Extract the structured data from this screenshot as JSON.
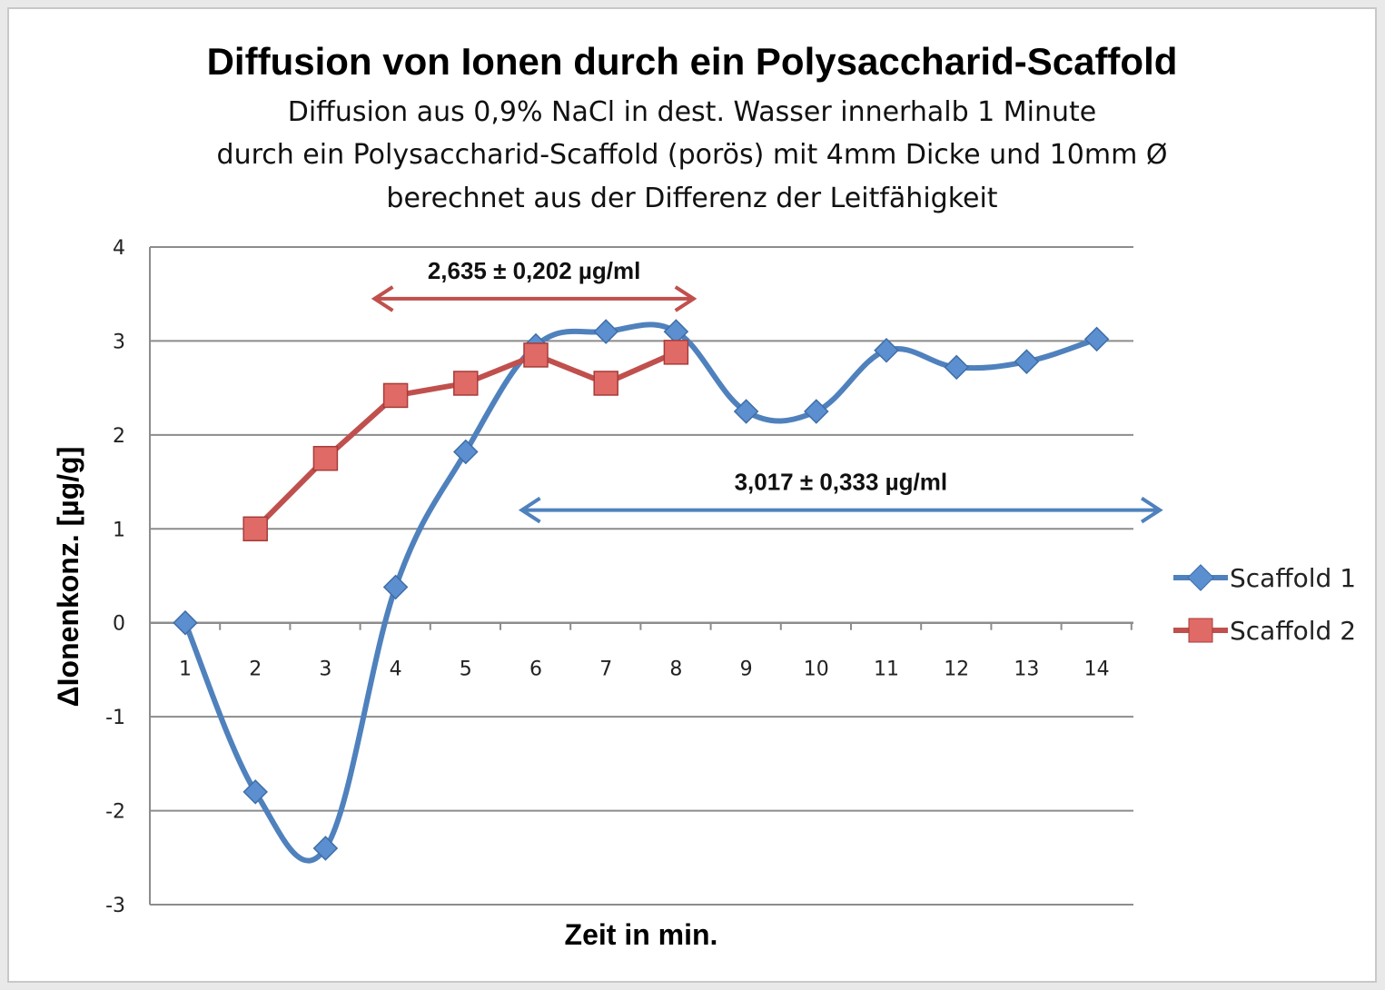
{
  "chart_data": {
    "type": "line",
    "title": "Diffusion von Ionen durch ein Polysaccharid-Scaffold",
    "subtitle": [
      "Diffusion aus 0,9% NaCl in dest. Wasser innerhalb 1 Minute",
      "durch ein Polysaccharid-Scaffold (porös) mit 4mm Dicke und 10mm Ø",
      "berechnet aus der Differenz der Leitfähigkeit"
    ],
    "xlabel": "Zeit in min.",
    "ylabel": "ΔIonenkonz. [µg/g]",
    "categories": [
      "1",
      "2",
      "3",
      "4",
      "5",
      "6",
      "7",
      "8",
      "9",
      "10",
      "11",
      "12",
      "13",
      "14"
    ],
    "ylim": [
      -3,
      4
    ],
    "yticks": [
      "4",
      "3",
      "2",
      "1",
      "0",
      "-1",
      "-2",
      "-3"
    ],
    "grid": true,
    "legend_position": "right",
    "series": [
      {
        "name": "Scaffold 1",
        "color": "#4f81bd",
        "marker": "diamond",
        "values": [
          0,
          -1.8,
          -2.4,
          0.38,
          1.82,
          2.95,
          3.1,
          3.1,
          2.25,
          2.25,
          2.9,
          2.72,
          2.78,
          3.02
        ]
      },
      {
        "name": "Scaffold 2",
        "color": "#c0504d",
        "marker": "square",
        "values": [
          null,
          1.0,
          1.75,
          2.42,
          2.55,
          2.85,
          2.55,
          2.88,
          null,
          null,
          null,
          null,
          null,
          null
        ]
      }
    ],
    "annotations": [
      {
        "text": "2,635 ± 0,202 µg/ml",
        "color": "#c0504d",
        "from_x": 3.7,
        "to_x": 8.25,
        "y": 3.45
      },
      {
        "text": "3,017 ± 0,333 µg/ml",
        "color": "#4f81bd",
        "from_x": 5.8,
        "to_x": 14.9,
        "y": 1.2
      }
    ]
  }
}
